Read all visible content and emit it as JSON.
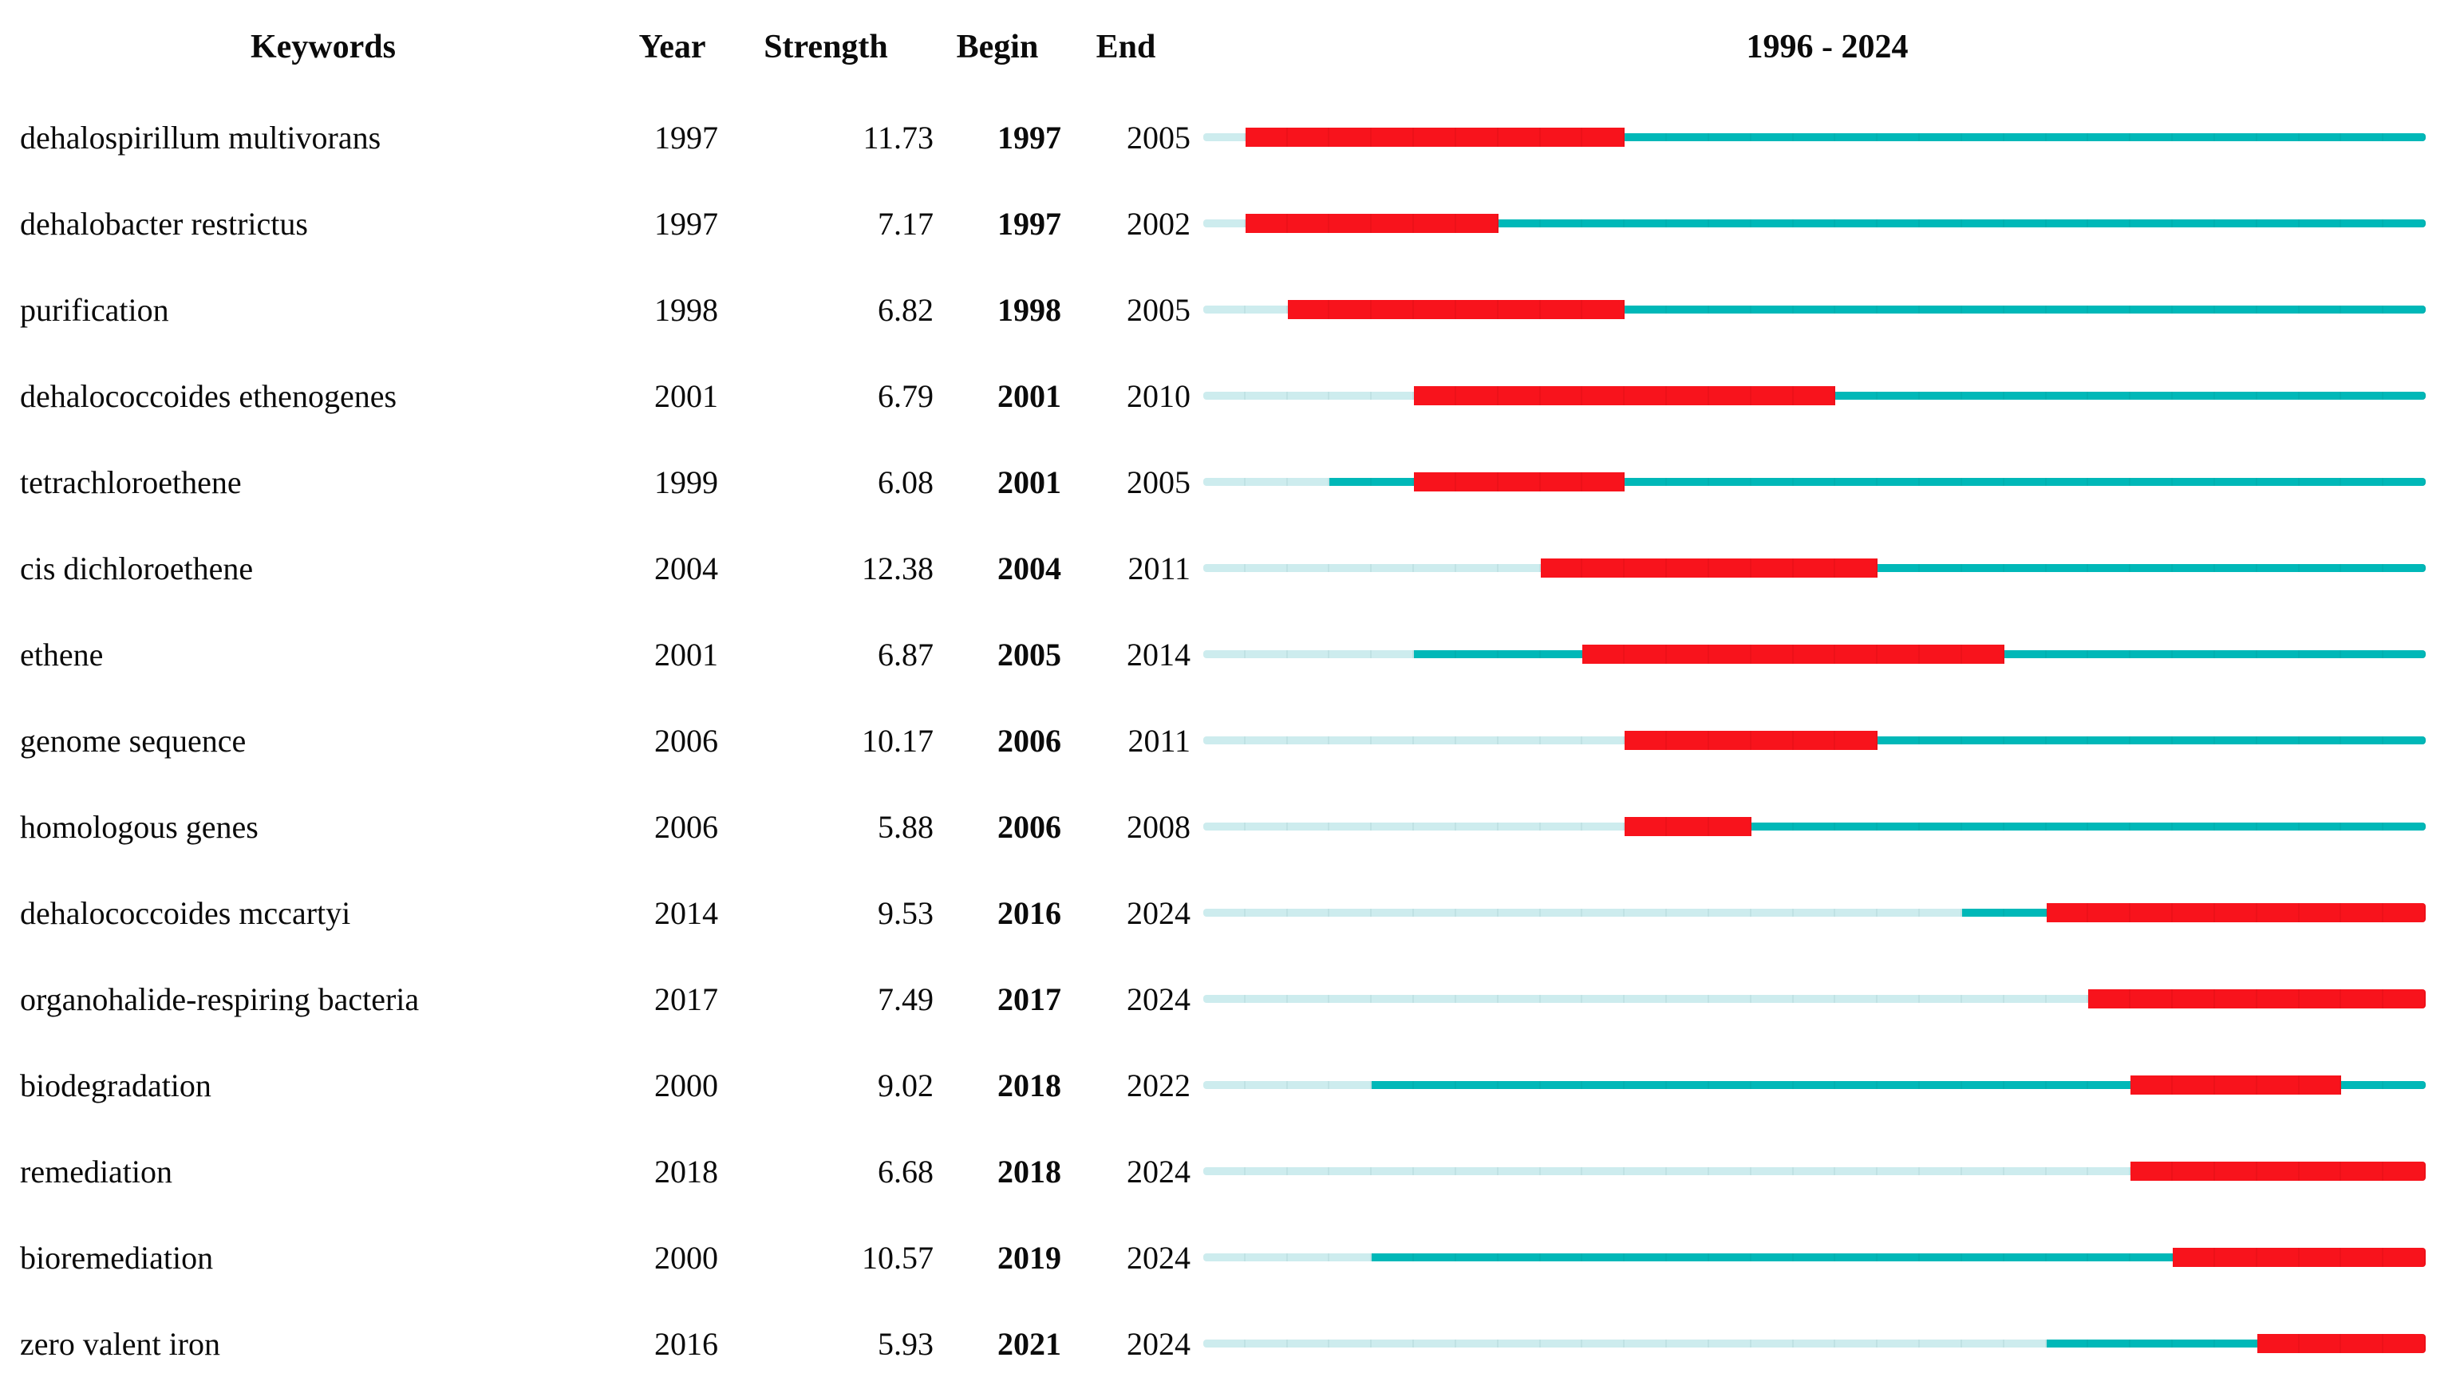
{
  "header": {
    "keywords": "Keywords",
    "year": "Year",
    "strength": "Strength",
    "begin": "Begin",
    "end": "End",
    "timeline": "1996 - 2024"
  },
  "colors": {
    "pre_appearance": "#cdecee",
    "active": "#00b8b8",
    "burst": "#f8131c"
  },
  "chart_data": {
    "type": "table",
    "subtype": "citation-burst-timeline",
    "columns": [
      "Keywords",
      "Year",
      "Strength",
      "Begin",
      "End",
      "1996 - 2024"
    ],
    "timeline": {
      "start_year": 1996,
      "end_year": 2024
    },
    "legend_note": "pale = before first appearance, teal = keyword active, red = burst interval Begin–End",
    "rows": [
      {
        "keyword": "dehalospirillum multivorans",
        "year": 1997,
        "strength": "11.73",
        "begin": 1997,
        "end": 2005
      },
      {
        "keyword": "dehalobacter restrictus",
        "year": 1997,
        "strength": "7.17",
        "begin": 1997,
        "end": 2002
      },
      {
        "keyword": "purification",
        "year": 1998,
        "strength": "6.82",
        "begin": 1998,
        "end": 2005
      },
      {
        "keyword": "dehalococcoides ethenogenes",
        "year": 2001,
        "strength": "6.79",
        "begin": 2001,
        "end": 2010
      },
      {
        "keyword": "tetrachloroethene",
        "year": 1999,
        "strength": "6.08",
        "begin": 2001,
        "end": 2005
      },
      {
        "keyword": "cis dichloroethene",
        "year": 2004,
        "strength": "12.38",
        "begin": 2004,
        "end": 2011
      },
      {
        "keyword": "ethene",
        "year": 2001,
        "strength": "6.87",
        "begin": 2005,
        "end": 2014
      },
      {
        "keyword": "genome sequence",
        "year": 2006,
        "strength": "10.17",
        "begin": 2006,
        "end": 2011
      },
      {
        "keyword": "homologous genes",
        "year": 2006,
        "strength": "5.88",
        "begin": 2006,
        "end": 2008
      },
      {
        "keyword": "dehalococcoides mccartyi",
        "year": 2014,
        "strength": "9.53",
        "begin": 2016,
        "end": 2024
      },
      {
        "keyword": "organohalide-respiring bacteria",
        "year": 2017,
        "strength": "7.49",
        "begin": 2017,
        "end": 2024
      },
      {
        "keyword": "biodegradation",
        "year": 2000,
        "strength": "9.02",
        "begin": 2018,
        "end": 2022
      },
      {
        "keyword": "remediation",
        "year": 2018,
        "strength": "6.68",
        "begin": 2018,
        "end": 2024
      },
      {
        "keyword": "bioremediation",
        "year": 2000,
        "strength": "10.57",
        "begin": 2019,
        "end": 2024
      },
      {
        "keyword": "zero valent iron",
        "year": 2016,
        "strength": "5.93",
        "begin": 2021,
        "end": 2024
      }
    ]
  }
}
